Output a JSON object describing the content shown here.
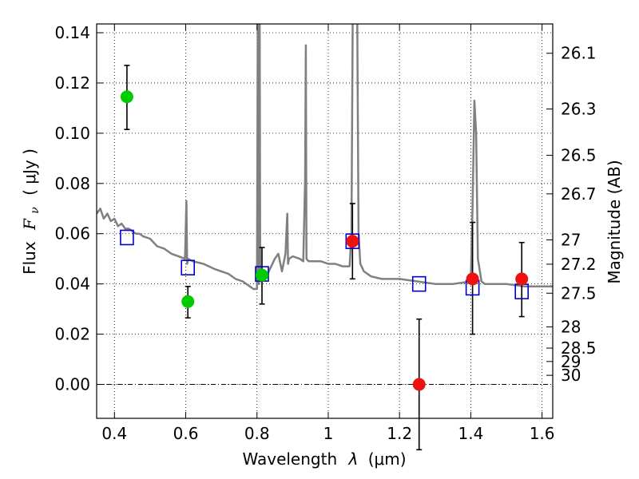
{
  "chart_data": {
    "type": "scatter",
    "xlabel_prefix": "Wavelength",
    "xlabel_symbol": "λ",
    "xlabel_unit": "(μm)",
    "ylabel_prefix": "Flux",
    "ylabel_symbol": "F",
    "ylabel_subscript": "ν",
    "ylabel_unit": "( μJy )",
    "y2label": "Magnitude (AB)",
    "xlim": [
      0.35,
      1.63
    ],
    "ylim": [
      -0.0135,
      0.1435
    ],
    "grid": true,
    "x_ticks": [
      {
        "value": 0.4,
        "label": "0.4"
      },
      {
        "value": 0.6,
        "label": "0.6"
      },
      {
        "value": 0.8,
        "label": "0.8"
      },
      {
        "value": 1.0,
        "label": "1"
      },
      {
        "value": 1.2,
        "label": "1.2"
      },
      {
        "value": 1.4,
        "label": "1.4"
      },
      {
        "value": 1.6,
        "label": "1.6"
      }
    ],
    "y_ticks": [
      {
        "value": 0.0,
        "label": "0.00"
      },
      {
        "value": 0.02,
        "label": "0.02"
      },
      {
        "value": 0.04,
        "label": "0.04"
      },
      {
        "value": 0.06,
        "label": "0.06"
      },
      {
        "value": 0.08,
        "label": "0.08"
      },
      {
        "value": 0.1,
        "label": "0.10"
      },
      {
        "value": 0.12,
        "label": "0.12"
      },
      {
        "value": 0.14,
        "label": "0.14"
      }
    ],
    "mag_ticks": [
      {
        "value": 26.1,
        "label": "26.1"
      },
      {
        "value": 26.3,
        "label": "26.3"
      },
      {
        "value": 26.5,
        "label": "26.5"
      },
      {
        "value": 26.7,
        "label": "26.7"
      },
      {
        "value": 27.0,
        "label": "27"
      },
      {
        "value": 27.2,
        "label": "27.2"
      },
      {
        "value": 27.5,
        "label": "27.5"
      },
      {
        "value": 28.0,
        "label": "28"
      },
      {
        "value": 28.5,
        "label": "28.5"
      },
      {
        "value": 29.0,
        "label": "29"
      },
      {
        "value": 30.0,
        "label": "30"
      }
    ],
    "series": [
      {
        "name": "template-spectrum",
        "kind": "line",
        "color": "#808080",
        "x": [
          0.35,
          0.36,
          0.37,
          0.38,
          0.39,
          0.4,
          0.41,
          0.42,
          0.43,
          0.44,
          0.45,
          0.46,
          0.47,
          0.48,
          0.5,
          0.52,
          0.54,
          0.56,
          0.58,
          0.598,
          0.602,
          0.604,
          0.607,
          0.62,
          0.65,
          0.68,
          0.7,
          0.72,
          0.74,
          0.76,
          0.78,
          0.79,
          0.8,
          0.803,
          0.805,
          0.807,
          0.809,
          0.812,
          0.83,
          0.85,
          0.86,
          0.87,
          0.88,
          0.885,
          0.887,
          0.89,
          0.9,
          0.92,
          0.93,
          0.935,
          0.937,
          0.939,
          0.945,
          0.96,
          0.98,
          1.0,
          1.02,
          1.04,
          1.06,
          1.065,
          1.07,
          1.08,
          1.085,
          1.09,
          1.1,
          1.12,
          1.15,
          1.2,
          1.25,
          1.3,
          1.35,
          1.4,
          1.405,
          1.41,
          1.415,
          1.42,
          1.43,
          1.44,
          1.45,
          1.5,
          1.55,
          1.6,
          1.63
        ],
        "values": [
          0.068,
          0.07,
          0.066,
          0.068,
          0.065,
          0.066,
          0.063,
          0.064,
          0.062,
          0.062,
          0.061,
          0.06,
          0.06,
          0.059,
          0.058,
          0.055,
          0.054,
          0.052,
          0.051,
          0.05,
          0.073,
          0.048,
          0.05,
          0.049,
          0.048,
          0.046,
          0.045,
          0.044,
          0.042,
          0.041,
          0.039,
          0.038,
          0.038,
          0.18,
          0.04,
          0.18,
          0.041,
          0.042,
          0.044,
          0.05,
          0.052,
          0.045,
          0.052,
          0.068,
          0.048,
          0.05,
          0.051,
          0.05,
          0.049,
          0.082,
          0.135,
          0.05,
          0.049,
          0.049,
          0.049,
          0.048,
          0.048,
          0.047,
          0.047,
          0.06,
          0.18,
          0.18,
          0.06,
          0.048,
          0.045,
          0.043,
          0.042,
          0.042,
          0.041,
          0.04,
          0.04,
          0.041,
          0.07,
          0.113,
          0.1,
          0.05,
          0.041,
          0.04,
          0.04,
          0.04,
          0.039,
          0.039,
          0.039
        ]
      },
      {
        "name": "model-photometry",
        "kind": "open-square",
        "color": "#0000cc",
        "x": [
          0.435,
          0.606,
          0.814,
          1.068,
          1.255,
          1.405,
          1.543
        ],
        "values": [
          0.0585,
          0.0465,
          0.044,
          0.057,
          0.04,
          0.0385,
          0.037
        ]
      },
      {
        "name": "observed-optical",
        "kind": "filled-circle",
        "color": "#00cc00",
        "x": [
          0.435,
          0.606,
          0.814
        ],
        "values": [
          0.1145,
          0.033,
          0.0435
        ],
        "error_low": [
          0.1015,
          0.0265,
          0.032
        ],
        "error_high": [
          0.127,
          0.039,
          0.0545
        ]
      },
      {
        "name": "observed-infrared",
        "kind": "filled-circle",
        "color": "#ee1111",
        "x": [
          1.068,
          1.255,
          1.405,
          1.543
        ],
        "values": [
          0.057,
          0.0,
          0.042,
          0.042
        ],
        "error_low": [
          0.042,
          -0.026,
          0.02,
          0.027
        ],
        "error_high": [
          0.072,
          0.026,
          0.0645,
          0.0565
        ]
      }
    ]
  }
}
